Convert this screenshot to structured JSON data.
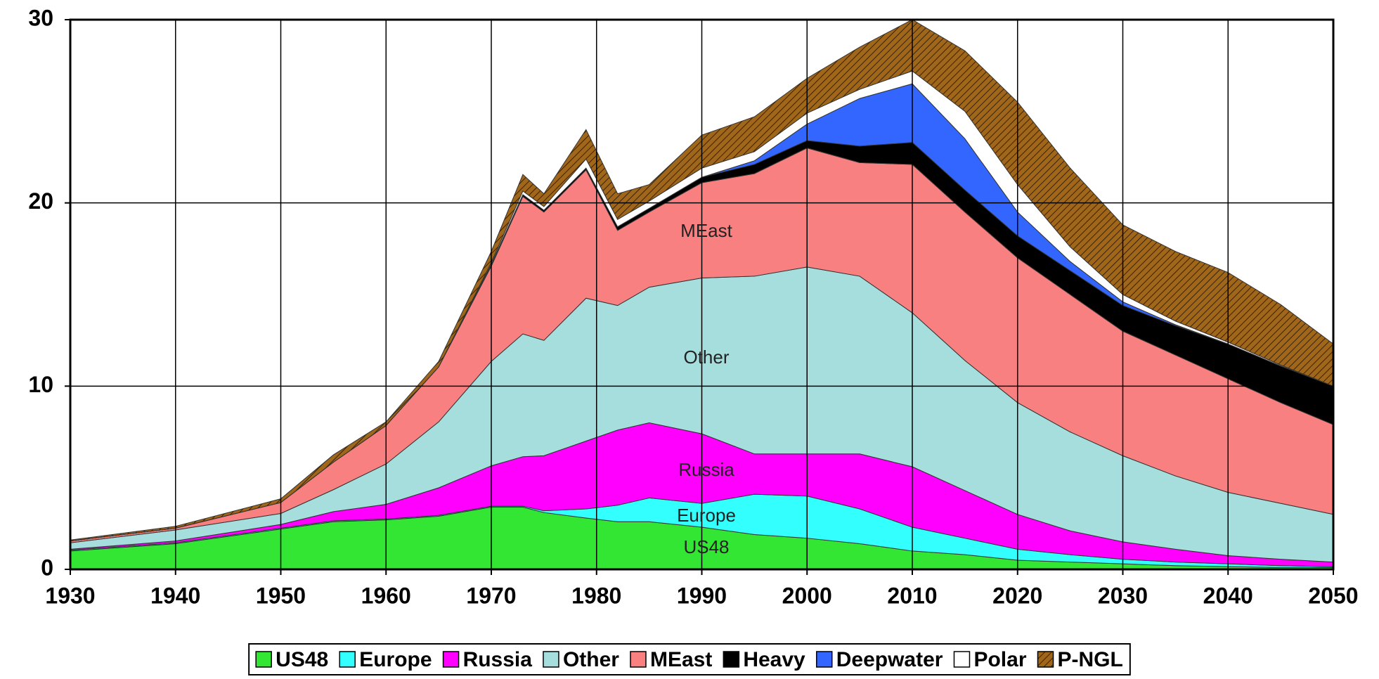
{
  "chart_data": {
    "type": "stacked_area",
    "x": [
      1930,
      1940,
      1950,
      1955,
      1960,
      1965,
      1970,
      1973,
      1975,
      1979,
      1982,
      1985,
      1990,
      1995,
      2000,
      2005,
      2010,
      2015,
      2020,
      2025,
      2030,
      2035,
      2040,
      2045,
      2050
    ],
    "series": [
      {
        "name": "US48",
        "color": "#33e633",
        "values": [
          1.0,
          1.4,
          2.2,
          2.6,
          2.7,
          2.9,
          3.4,
          3.4,
          3.1,
          2.8,
          2.6,
          2.6,
          2.3,
          1.9,
          1.7,
          1.4,
          1.0,
          0.8,
          0.5,
          0.4,
          0.3,
          0.2,
          0.15,
          0.1,
          0.1
        ]
      },
      {
        "name": "Europe",
        "color": "#33ffff",
        "values": [
          0.05,
          0.05,
          0.05,
          0.05,
          0.05,
          0.05,
          0.05,
          0.05,
          0.1,
          0.5,
          0.9,
          1.3,
          1.3,
          2.2,
          2.3,
          1.9,
          1.3,
          0.9,
          0.6,
          0.4,
          0.25,
          0.2,
          0.15,
          0.1,
          0.05
        ]
      },
      {
        "name": "Russia",
        "color": "#ff00ff",
        "values": [
          0.05,
          0.1,
          0.2,
          0.5,
          0.8,
          1.5,
          2.2,
          2.7,
          3.0,
          3.7,
          4.1,
          4.1,
          3.8,
          2.2,
          2.3,
          3.0,
          3.3,
          2.6,
          1.9,
          1.3,
          0.95,
          0.7,
          0.45,
          0.35,
          0.25
        ]
      },
      {
        "name": "Other",
        "color": "#a6dede",
        "values": [
          0.35,
          0.6,
          0.6,
          1.2,
          2.2,
          3.6,
          5.7,
          6.7,
          6.3,
          7.8,
          6.8,
          7.4,
          8.5,
          9.7,
          10.2,
          9.7,
          8.4,
          7.1,
          6.1,
          5.4,
          4.7,
          4.0,
          3.45,
          3.05,
          2.6
        ]
      },
      {
        "name": "MEast",
        "color": "#f98080",
        "values": [
          0.1,
          0.1,
          0.6,
          1.5,
          2.1,
          3.0,
          5.2,
          7.5,
          7.0,
          7.0,
          4.1,
          4.1,
          5.2,
          5.6,
          6.5,
          6.2,
          8.1,
          8.1,
          7.9,
          7.5,
          6.8,
          6.6,
          6.2,
          5.5,
          4.9
        ]
      },
      {
        "name": "Heavy",
        "color": "#000000",
        "values": [
          0,
          0,
          0,
          0,
          0,
          0,
          0.1,
          0.1,
          0.1,
          0.1,
          0.2,
          0.2,
          0.3,
          0.5,
          0.4,
          0.9,
          1.2,
          1.2,
          1.2,
          1.3,
          1.4,
          1.6,
          1.9,
          2.0,
          2.1
        ]
      },
      {
        "name": "Deepwater",
        "color": "#3366ff",
        "values": [
          0,
          0,
          0,
          0,
          0,
          0,
          0,
          0,
          0,
          0,
          0,
          0,
          0,
          0.2,
          0.9,
          2.6,
          3.2,
          2.8,
          1.3,
          0.5,
          0.2,
          0.05,
          0,
          0,
          0
        ]
      },
      {
        "name": "Polar",
        "color": "#ffffff",
        "values": [
          0,
          0,
          0,
          0,
          0,
          0,
          0.1,
          0.2,
          0.2,
          0.5,
          0.4,
          0.4,
          0.5,
          0.5,
          0.6,
          0.5,
          0.7,
          1.5,
          1.5,
          0.8,
          0.4,
          0.2,
          0.1,
          0.05,
          0
        ]
      },
      {
        "name": "P-NGL",
        "color": "#a0661a",
        "values": [
          0.05,
          0.1,
          0.2,
          0.4,
          0.2,
          0.3,
          0.6,
          0.9,
          0.7,
          1.6,
          1.4,
          0.9,
          1.8,
          1.9,
          1.9,
          2.3,
          2.8,
          3.3,
          4.5,
          4.3,
          3.8,
          3.8,
          3.8,
          3.3,
          2.3
        ]
      }
    ],
    "xlim": [
      1930,
      2050
    ],
    "ylim": [
      0,
      30
    ],
    "xticks": [
      1930,
      1940,
      1950,
      1960,
      1970,
      1980,
      1990,
      2000,
      2010,
      2020,
      2030,
      2040,
      2050
    ],
    "yticks": [
      0,
      10,
      20,
      30
    ],
    "grid": true,
    "legend": "bottom"
  }
}
